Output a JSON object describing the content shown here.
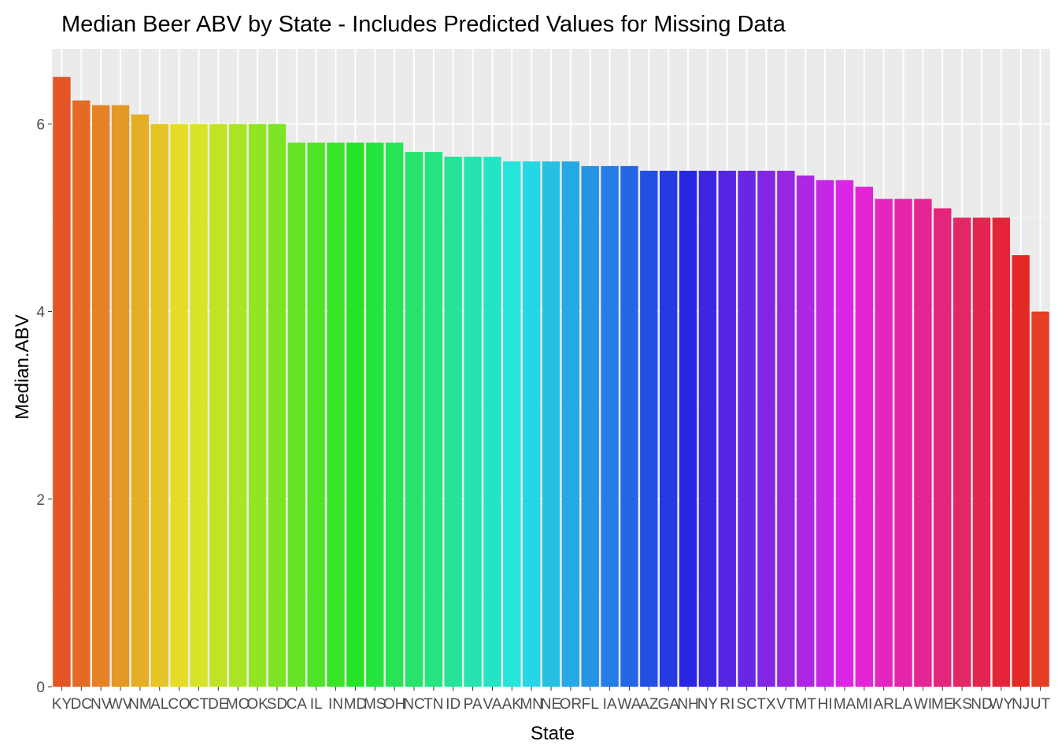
{
  "chart_data": {
    "type": "bar",
    "title": "Median Beer ABV by State - Includes Predicted Values for Missing Data",
    "xlabel": "State",
    "ylabel": "Median.ABV",
    "ylim": [
      0,
      6.8
    ],
    "yticks": [
      0,
      2,
      4,
      6
    ],
    "grid": true,
    "legend": "none",
    "categories": [
      "KY",
      "DC",
      "NV",
      "WV",
      "NM",
      "AL",
      "CO",
      "CT",
      "DE",
      "MO",
      "OK",
      "SD",
      "CA",
      "IL",
      "IN",
      "MD",
      "MS",
      "OH",
      "NC",
      "TN",
      "ID",
      "PA",
      "VA",
      "AK",
      "MN",
      "NE",
      "OR",
      "FL",
      "IA",
      "WA",
      "AZ",
      "GA",
      "NH",
      "NY",
      "RI",
      "SC",
      "TX",
      "VT",
      "MT",
      "HI",
      "MA",
      "MI",
      "AR",
      "LA",
      "WI",
      "ME",
      "KS",
      "ND",
      "WY",
      "NJ",
      "UT"
    ],
    "values": [
      6.5,
      6.25,
      6.2,
      6.2,
      6.1,
      6.0,
      6.0,
      6.0,
      6.0,
      6.0,
      6.0,
      6.0,
      5.8,
      5.8,
      5.8,
      5.8,
      5.8,
      5.8,
      5.7,
      5.7,
      5.65,
      5.65,
      5.65,
      5.6,
      5.6,
      5.6,
      5.6,
      5.55,
      5.55,
      5.55,
      5.5,
      5.5,
      5.5,
      5.5,
      5.5,
      5.5,
      5.5,
      5.5,
      5.45,
      5.4,
      5.4,
      5.33,
      5.2,
      5.2,
      5.2,
      5.1,
      5.0,
      5.0,
      5.0,
      4.6,
      4.0
    ]
  }
}
